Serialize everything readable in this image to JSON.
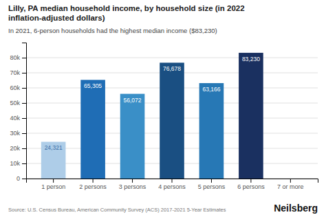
{
  "chart_data": {
    "type": "bar",
    "title": "Lilly, PA median household income, by household size (in 2022\ninflation-adjusted dollars)",
    "subtitle": "In 2021, 6-person households had the highest median income ($83,230)",
    "annotations": [
      "Source: U.S. Census Bureau, American Community Survey (ACS) 2017-2021 5-Year Estimates",
      "Neilsberg"
    ],
    "categories": [
      "1 person",
      "2 persons",
      "3 persons",
      "4 persons",
      "5 persons",
      "6 persons",
      "7 or more"
    ],
    "values": [
      24321,
      65305,
      56072,
      76678,
      63166,
      83230,
      0
    ],
    "value_labels": [
      "24,321",
      "65,305",
      "56,072",
      "76,678",
      "63,166",
      "83,230",
      null
    ],
    "data_labels": true,
    "colors": [
      "#aecde8",
      "#1f6db5",
      "#3a8fc7",
      "#1a4f82",
      "#2778b5",
      "#1a3060",
      "#ffffff"
    ],
    "ylim": [
      0,
      90000
    ],
    "yticks": [
      0,
      {
        "value": 10000,
        "label": "10k"
      },
      {
        "value": 20000,
        "label": "20k"
      },
      {
        "value": 30000,
        "label": "30k"
      },
      {
        "value": 40000,
        "label": "40k"
      },
      {
        "value": 50000,
        "label": "50k"
      },
      {
        "value": 60000,
        "label": "60k"
      },
      {
        "value": 70000,
        "label": "70k"
      },
      {
        "value": 80000,
        "label": "80k"
      }
    ],
    "grid": true
  }
}
